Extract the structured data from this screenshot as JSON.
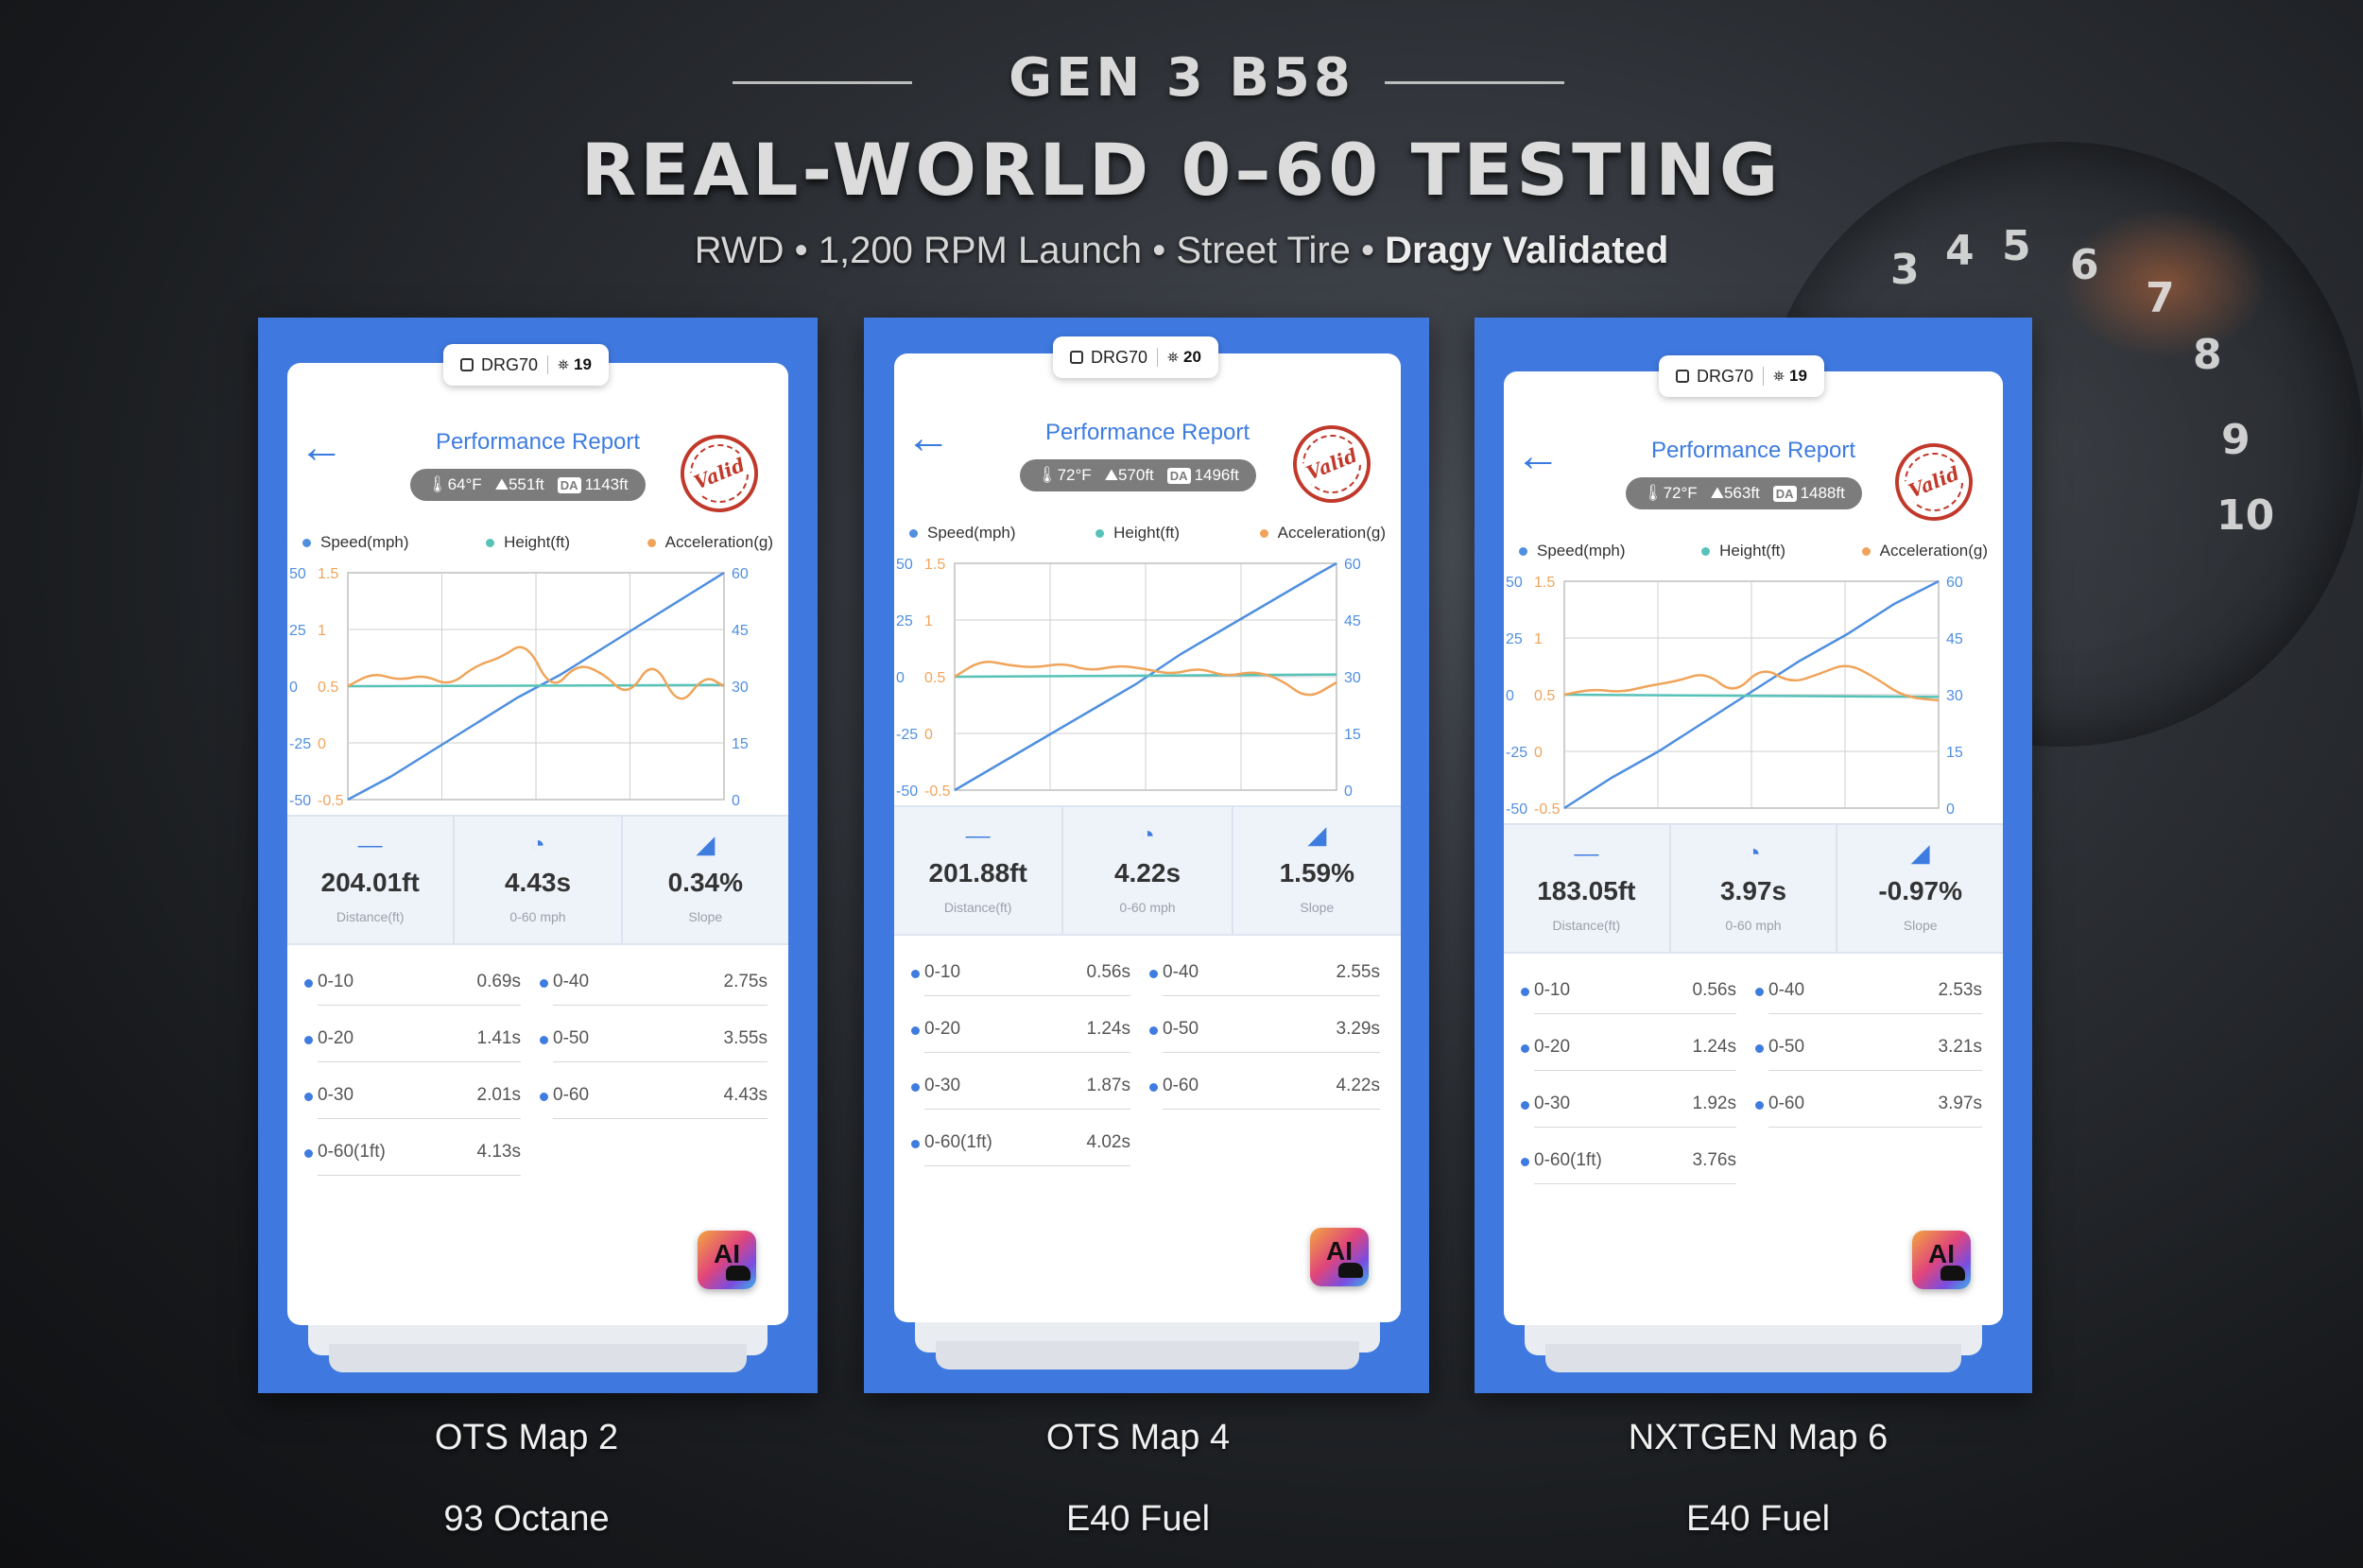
{
  "header": {
    "eyebrow": "GEN 3 B58",
    "title": "REAL-WORLD 0–60 TESTING",
    "subtitle_plain": "RWD • 1,200 RPM Launch • Street Tire • ",
    "subtitle_bold": "Dragy Validated"
  },
  "background": {
    "gauge_numbers": [
      "3",
      "4",
      "5",
      "6",
      "7",
      "8",
      "9",
      "10"
    ]
  },
  "colors": {
    "panel": "#3f79e0",
    "speed": "#4f8fe0",
    "height": "#57c2b8",
    "acceleration": "#f0a45a",
    "title_blue": "#3e7ce0"
  },
  "legend": {
    "speed": "Speed(mph)",
    "height": "Height(ft)",
    "acceleration": "Acceleration(g)"
  },
  "report_title": "Performance Report",
  "stamp_text": "Valid",
  "metric_labels": {
    "distance": "Distance(ft)",
    "time": "0-60 mph",
    "slope": "Slope"
  },
  "ai_badge": "AI",
  "reports": [
    {
      "device": "DRG70",
      "satellites": "19",
      "temp": "64°F",
      "altitude": "551ft",
      "da_label": "DA",
      "da": "1143ft",
      "distance": "204.01ft",
      "time": "4.43s",
      "slope": "0.34%",
      "splits": [
        {
          "label": "0-10",
          "value": "0.69s"
        },
        {
          "label": "0-40",
          "value": "2.75s"
        },
        {
          "label": "0-20",
          "value": "1.41s"
        },
        {
          "label": "0-50",
          "value": "3.55s"
        },
        {
          "label": "0-30",
          "value": "2.01s"
        },
        {
          "label": "0-60",
          "value": "4.43s"
        },
        {
          "label": "0-60(1ft)",
          "value": "4.13s"
        }
      ],
      "caption_top": "OTS Map 2",
      "caption_bottom": "93 Octane"
    },
    {
      "device": "DRG70",
      "satellites": "20",
      "temp": "72°F",
      "altitude": "570ft",
      "da_label": "DA",
      "da": "1496ft",
      "distance": "201.88ft",
      "time": "4.22s",
      "slope": "1.59%",
      "splits": [
        {
          "label": "0-10",
          "value": "0.56s"
        },
        {
          "label": "0-40",
          "value": "2.55s"
        },
        {
          "label": "0-20",
          "value": "1.24s"
        },
        {
          "label": "0-50",
          "value": "3.29s"
        },
        {
          "label": "0-30",
          "value": "1.87s"
        },
        {
          "label": "0-60",
          "value": "4.22s"
        },
        {
          "label": "0-60(1ft)",
          "value": "4.02s"
        }
      ],
      "caption_top": "OTS Map 4",
      "caption_bottom": "E40 Fuel"
    },
    {
      "device": "DRG70",
      "satellites": "19",
      "temp": "72°F",
      "altitude": "563ft",
      "da_label": "DA",
      "da": "1488ft",
      "distance": "183.05ft",
      "time": "3.97s",
      "slope": "-0.97%",
      "splits": [
        {
          "label": "0-10",
          "value": "0.56s"
        },
        {
          "label": "0-40",
          "value": "2.53s"
        },
        {
          "label": "0-20",
          "value": "1.24s"
        },
        {
          "label": "0-50",
          "value": "3.21s"
        },
        {
          "label": "0-30",
          "value": "1.92s"
        },
        {
          "label": "0-60",
          "value": "3.97s"
        },
        {
          "label": "0-60(1ft)",
          "value": "3.76s"
        }
      ],
      "caption_top": "NXTGEN Map 6",
      "caption_bottom": "E40 Fuel"
    }
  ],
  "chart_data": [
    {
      "type": "line",
      "left_outer_ticks": [
        "50",
        "25",
        "0",
        "-25",
        "-50"
      ],
      "left_inner_ticks": [
        "1.5",
        "1",
        "0.5",
        "0",
        "-0.5"
      ],
      "right_ticks": [
        "60",
        "45",
        "30",
        "15",
        "0"
      ],
      "series": [
        {
          "name": "Speed(mph)",
          "axis": "right",
          "x": [
            0,
            0.5,
            1,
            1.5,
            2,
            2.5,
            3,
            3.5,
            4,
            4.43
          ],
          "values": [
            0,
            6,
            13,
            20,
            27,
            33,
            40,
            47,
            54,
            60
          ]
        },
        {
          "name": "Height(ft)",
          "axis": "left_outer",
          "x": [
            0,
            4.43
          ],
          "values": [
            0,
            0.5
          ]
        },
        {
          "name": "Acceleration(g)",
          "axis": "left_inner",
          "x": [
            0,
            0.3,
            0.6,
            0.9,
            1.2,
            1.5,
            1.8,
            2.1,
            2.4,
            2.7,
            3.0,
            3.3,
            3.6,
            3.9,
            4.2,
            4.43
          ],
          "values": [
            0.5,
            0.62,
            0.55,
            0.6,
            0.5,
            0.68,
            0.75,
            0.9,
            0.45,
            0.7,
            0.62,
            0.4,
            0.75,
            0.3,
            0.6,
            0.5
          ]
        }
      ]
    },
    {
      "type": "line",
      "left_outer_ticks": [
        "50",
        "25",
        "0",
        "-25",
        "-50"
      ],
      "left_inner_ticks": [
        "1.5",
        "1",
        "0.5",
        "0",
        "-0.5"
      ],
      "right_ticks": [
        "60",
        "45",
        "30",
        "15",
        "0"
      ],
      "series": [
        {
          "name": "Speed(mph)",
          "axis": "right",
          "x": [
            0,
            0.5,
            1,
            1.5,
            2,
            2.5,
            3,
            3.5,
            4,
            4.22
          ],
          "values": [
            0,
            7,
            14,
            21,
            28,
            36,
            43,
            50,
            57,
            60
          ]
        },
        {
          "name": "Height(ft)",
          "axis": "left_outer",
          "x": [
            0,
            4.22
          ],
          "values": [
            0,
            1
          ]
        },
        {
          "name": "Acceleration(g)",
          "axis": "left_inner",
          "x": [
            0,
            0.3,
            0.6,
            0.9,
            1.2,
            1.5,
            1.8,
            2.1,
            2.4,
            2.7,
            3.0,
            3.3,
            3.6,
            3.9,
            4.22
          ],
          "values": [
            0.5,
            0.65,
            0.6,
            0.58,
            0.62,
            0.55,
            0.6,
            0.57,
            0.52,
            0.58,
            0.5,
            0.55,
            0.48,
            0.3,
            0.45
          ]
        }
      ]
    },
    {
      "type": "line",
      "left_outer_ticks": [
        "50",
        "25",
        "0",
        "-25",
        "-50"
      ],
      "left_inner_ticks": [
        "1.5",
        "1",
        "0.5",
        "0",
        "-0.5"
      ],
      "right_ticks": [
        "60",
        "45",
        "30",
        "15",
        "0"
      ],
      "series": [
        {
          "name": "Speed(mph)",
          "axis": "right",
          "x": [
            0,
            0.5,
            1,
            1.5,
            2,
            2.5,
            3,
            3.5,
            3.97
          ],
          "values": [
            0,
            8,
            15,
            23,
            31,
            39,
            46,
            54,
            60
          ]
        },
        {
          "name": "Height(ft)",
          "axis": "left_outer",
          "x": [
            0,
            3.97
          ],
          "values": [
            0,
            -1
          ]
        },
        {
          "name": "Acceleration(g)",
          "axis": "left_inner",
          "x": [
            0,
            0.3,
            0.6,
            0.9,
            1.2,
            1.5,
            1.8,
            2.1,
            2.4,
            2.7,
            3.0,
            3.3,
            3.6,
            3.97
          ],
          "values": [
            0.5,
            0.55,
            0.52,
            0.58,
            0.62,
            0.7,
            0.5,
            0.75,
            0.6,
            0.68,
            0.78,
            0.65,
            0.48,
            0.45
          ]
        }
      ]
    }
  ]
}
